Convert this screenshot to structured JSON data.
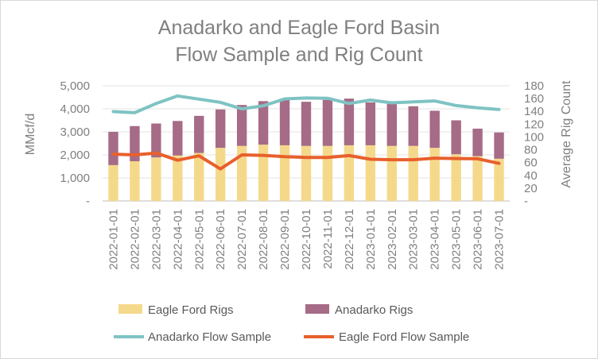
{
  "chart_data": {
    "type": "bar",
    "title_lines": [
      "Anadarko and Eagle Ford Basin",
      "Flow Sample and Rig Count"
    ],
    "ylabel_left": "MMcf/d",
    "ylabel_right": "Average Rig Count",
    "y_left_ticks": [
      "-",
      "1,000",
      "2,000",
      "3,000",
      "4,000",
      "5,000"
    ],
    "y_left_range": [
      0,
      5000
    ],
    "y_right_ticks": [
      "-",
      "20",
      "40",
      "60",
      "80",
      "100",
      "120",
      "140",
      "160",
      "180"
    ],
    "y_right_range": [
      0,
      180
    ],
    "categories": [
      "2022-01-01",
      "2022-02-01",
      "2022-03-01",
      "2022-04-01",
      "2022-05-01",
      "2022-06-01",
      "2022-07-01",
      "2022-08-01",
      "2022-09-01",
      "2022-10-01",
      "2022-11-01",
      "2022-12-01",
      "2023-01-01",
      "2023-02-01",
      "2023-03-01",
      "2023-04-01",
      "2023-05-01",
      "2023-06-01",
      "2023-07-01"
    ],
    "bar_series": [
      {
        "name": "Eagle Ford Rigs",
        "color": "#f5d98b",
        "axis": "right",
        "values": [
          56,
          62,
          68,
          71,
          75,
          83,
          86,
          88,
          87,
          86,
          86,
          87,
          87,
          86,
          86,
          83,
          73,
          70,
          66
        ]
      },
      {
        "name": "Anadarko Rigs",
        "color": "#a66b86",
        "axis": "right",
        "values": [
          52,
          55,
          53,
          54,
          58,
          60,
          64,
          68,
          72,
          69,
          72,
          73,
          67,
          66,
          62,
          58,
          53,
          43,
          41
        ]
      }
    ],
    "line_series": [
      {
        "name": "Anadarko Flow Sample",
        "color": "#7fc3c3",
        "axis": "left",
        "values": [
          3880,
          3830,
          4230,
          4560,
          4420,
          4280,
          4000,
          4130,
          4430,
          4470,
          4460,
          4230,
          4380,
          4260,
          4300,
          4340,
          4140,
          4040,
          3970
        ]
      },
      {
        "name": "Eagle Ford Flow Sample",
        "color": "#e8602c",
        "axis": "left",
        "values": [
          2030,
          2000,
          2080,
          1770,
          1960,
          1390,
          2000,
          1980,
          1920,
          1890,
          1890,
          1970,
          1810,
          1790,
          1790,
          1860,
          1840,
          1830,
          1630
        ]
      }
    ],
    "grid": true,
    "legend_position": "bottom"
  }
}
